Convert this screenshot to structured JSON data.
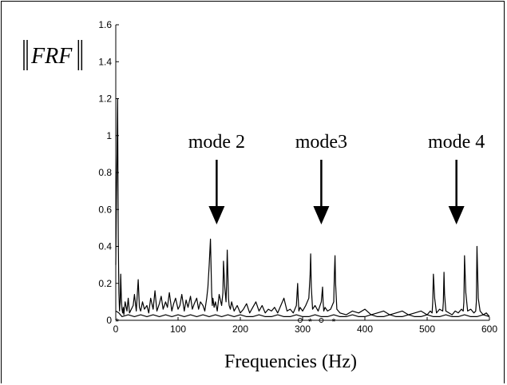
{
  "chart_data": {
    "type": "line",
    "title": "",
    "xlabel": "Frequencies (Hz)",
    "ylabel": "FRF",
    "xlim": [
      0,
      600
    ],
    "ylim": [
      0,
      1.6
    ],
    "xticks": [
      "0",
      "100",
      "200",
      "300",
      "400",
      "500",
      "600"
    ],
    "yticks": [
      "0",
      "0.2",
      "0.4",
      "0.6",
      "0.8",
      "1",
      "1.2",
      "1.4",
      "1.6"
    ],
    "grid": false,
    "series": [
      {
        "x": [
          0,
          1,
          2,
          3,
          4,
          5,
          6,
          7,
          8,
          9,
          10,
          11,
          12,
          13,
          15,
          18,
          20,
          22,
          25,
          28,
          30,
          33,
          36,
          38,
          40,
          43,
          46,
          50,
          53,
          56,
          60,
          63,
          66,
          70,
          73,
          76,
          80,
          83,
          86,
          90,
          93,
          96,
          100,
          103,
          106,
          110,
          113,
          116,
          120,
          123,
          126,
          130,
          133,
          136,
          140,
          143,
          146,
          148,
          150,
          152,
          153,
          154,
          155,
          156,
          158,
          160,
          163,
          166,
          170,
          172,
          173,
          175,
          177,
          178,
          179,
          180,
          181,
          182,
          184,
          186,
          190,
          195,
          200,
          205,
          210,
          215,
          220,
          225,
          230,
          235,
          240,
          245,
          250,
          255,
          260,
          265,
          270,
          275,
          280,
          285,
          290,
          292,
          293,
          294,
          296,
          300,
          305,
          310,
          312,
          313,
          314,
          316,
          320,
          325,
          330,
          332,
          333,
          334,
          336,
          340,
          345,
          350,
          351,
          352,
          353,
          355,
          360,
          370,
          380,
          390,
          400,
          410,
          420,
          430,
          440,
          450,
          460,
          470,
          480,
          490,
          500,
          505,
          508,
          509,
          510,
          512,
          515,
          520,
          525,
          526,
          527,
          528,
          530,
          535,
          540,
          545,
          550,
          555,
          558,
          559,
          560,
          562,
          565,
          570,
          575,
          578,
          579,
          580,
          582,
          585,
          590,
          595,
          600
        ],
        "y": [
          0.3,
          0.65,
          0.9,
          1.2,
          0.45,
          0.15,
          0.05,
          0.1,
          0.25,
          0.12,
          0.06,
          0.04,
          0.07,
          0.03,
          0.1,
          0.05,
          0.12,
          0.04,
          0.06,
          0.08,
          0.14,
          0.05,
          0.22,
          0.07,
          0.05,
          0.1,
          0.06,
          0.08,
          0.04,
          0.12,
          0.06,
          0.16,
          0.05,
          0.09,
          0.13,
          0.06,
          0.1,
          0.07,
          0.15,
          0.05,
          0.09,
          0.12,
          0.06,
          0.08,
          0.14,
          0.05,
          0.11,
          0.07,
          0.13,
          0.06,
          0.09,
          0.12,
          0.06,
          0.1,
          0.08,
          0.05,
          0.12,
          0.18,
          0.3,
          0.44,
          0.3,
          0.15,
          0.08,
          0.12,
          0.07,
          0.1,
          0.05,
          0.14,
          0.08,
          0.15,
          0.32,
          0.18,
          0.1,
          0.2,
          0.38,
          0.25,
          0.12,
          0.08,
          0.06,
          0.1,
          0.05,
          0.08,
          0.04,
          0.06,
          0.09,
          0.04,
          0.07,
          0.1,
          0.05,
          0.08,
          0.04,
          0.06,
          0.05,
          0.07,
          0.04,
          0.08,
          0.12,
          0.05,
          0.06,
          0.04,
          0.08,
          0.2,
          0.12,
          0.05,
          0.07,
          0.05,
          0.08,
          0.12,
          0.25,
          0.36,
          0.18,
          0.06,
          0.08,
          0.05,
          0.1,
          0.18,
          0.1,
          0.05,
          0.07,
          0.05,
          0.06,
          0.1,
          0.25,
          0.35,
          0.2,
          0.06,
          0.04,
          0.03,
          0.05,
          0.04,
          0.06,
          0.03,
          0.04,
          0.05,
          0.03,
          0.04,
          0.05,
          0.03,
          0.04,
          0.05,
          0.03,
          0.05,
          0.04,
          0.1,
          0.25,
          0.12,
          0.04,
          0.06,
          0.05,
          0.1,
          0.26,
          0.14,
          0.05,
          0.04,
          0.03,
          0.05,
          0.04,
          0.06,
          0.05,
          0.1,
          0.35,
          0.15,
          0.05,
          0.06,
          0.04,
          0.05,
          0.1,
          0.4,
          0.12,
          0.05,
          0.03,
          0.04,
          0.02
        ]
      },
      {
        "x": [
          0,
          5,
          10,
          20,
          30,
          40,
          50,
          60,
          70,
          80,
          90,
          100,
          110,
          120,
          130,
          140,
          150,
          160,
          170,
          180,
          190,
          200,
          210,
          220,
          230,
          240,
          250,
          260,
          270,
          280,
          290,
          300,
          310,
          320,
          330,
          340,
          350,
          360,
          370,
          380,
          390,
          400,
          410,
          420,
          430,
          440,
          450,
          460,
          470,
          480,
          490,
          500,
          510,
          520,
          530,
          540,
          550,
          560,
          570,
          580,
          590,
          600
        ],
        "y": [
          0.05,
          0.04,
          0.02,
          0.03,
          0.02,
          0.03,
          0.02,
          0.03,
          0.02,
          0.03,
          0.02,
          0.03,
          0.02,
          0.03,
          0.02,
          0.03,
          0.02,
          0.03,
          0.02,
          0.03,
          0.02,
          0.03,
          0.02,
          0.02,
          0.03,
          0.02,
          0.02,
          0.03,
          0.02,
          0.02,
          0.03,
          0.02,
          0.02,
          0.03,
          0.02,
          0.02,
          0.03,
          0.02,
          0.02,
          0.03,
          0.02,
          0.02,
          0.03,
          0.02,
          0.02,
          0.03,
          0.02,
          0.02,
          0.03,
          0.02,
          0.02,
          0.03,
          0.02,
          0.02,
          0.03,
          0.02,
          0.02,
          0.03,
          0.02,
          0.02,
          0.03,
          0.02
        ]
      }
    ],
    "markers": [
      {
        "symbol": "*",
        "x": 2
      },
      {
        "symbol": "o",
        "x": 296
      },
      {
        "symbol": "*",
        "x": 312
      },
      {
        "symbol": "o",
        "x": 330
      },
      {
        "symbol": "*",
        "x": 350
      }
    ],
    "annotations": [
      {
        "text": "mode 2",
        "x": 162
      },
      {
        "text": "mode3",
        "x": 330
      },
      {
        "text": "mode 4",
        "x": 547
      }
    ],
    "colors": {
      "line": "#000000",
      "axis": "#000000"
    }
  }
}
